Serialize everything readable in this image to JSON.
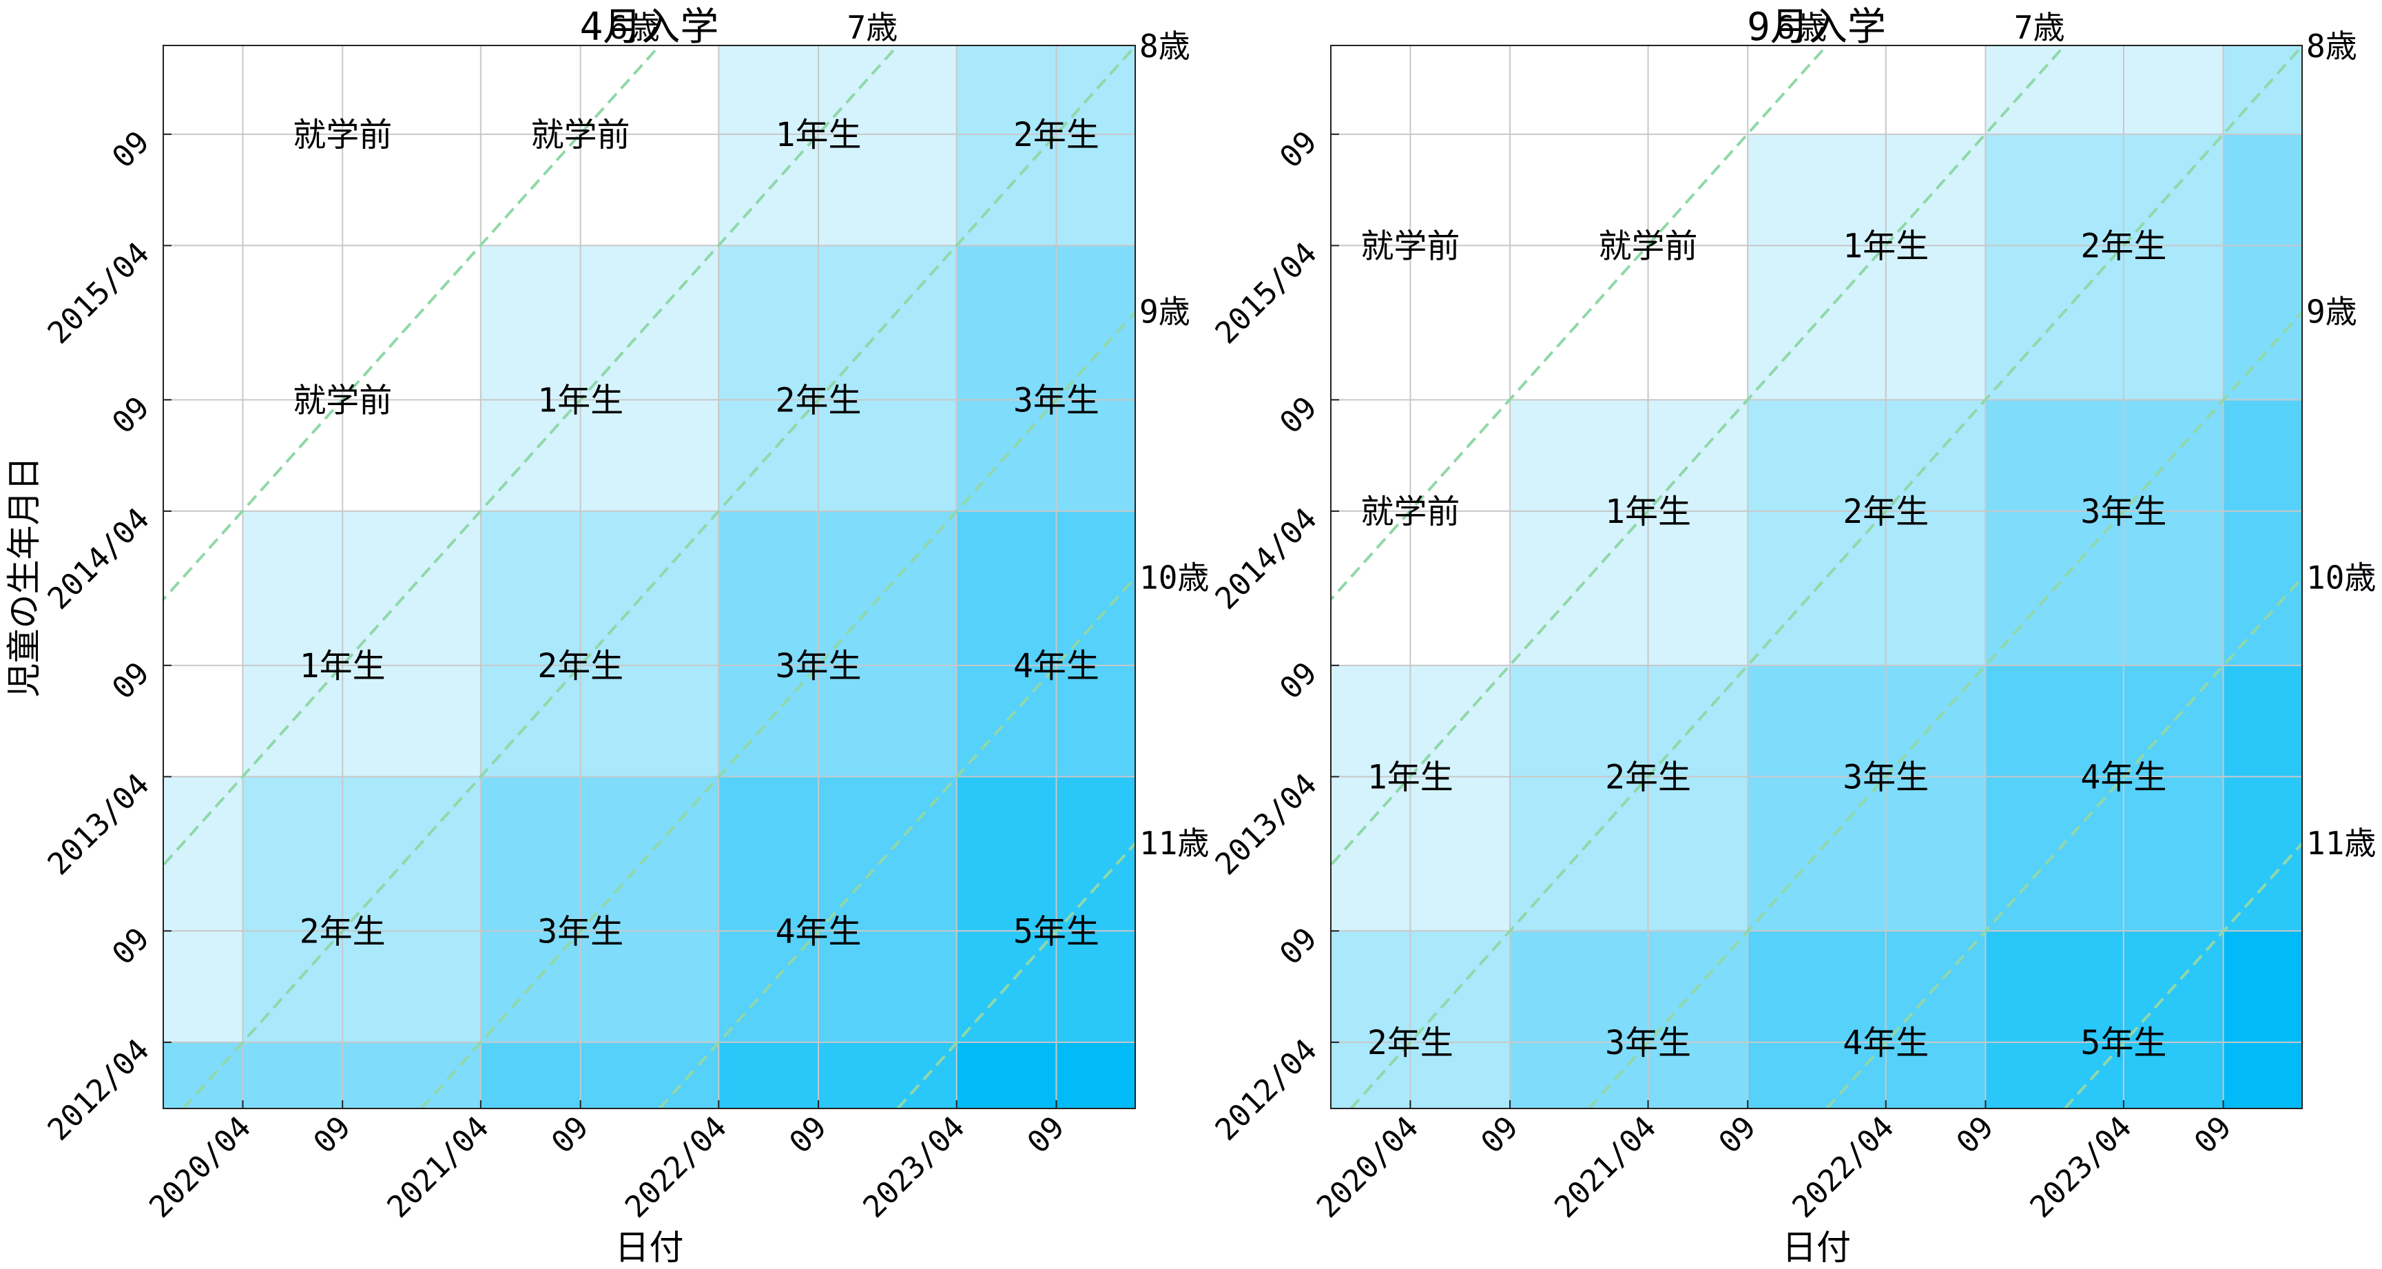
{
  "chart_data": [
    {
      "type": "heatmap",
      "title": "4月入学",
      "xlabel": "日付",
      "ylabel": "児童の生年月日",
      "x_range": [
        "2019-12-01",
        "2023-12-31"
      ],
      "y_range": [
        "2012-01-01",
        "2016-01-01"
      ],
      "x_ticks": [
        {
          "date": "2020-04-01",
          "label": "2020/04"
        },
        {
          "date": "2020-09-01",
          "label": "09"
        },
        {
          "date": "2021-04-01",
          "label": "2021/04"
        },
        {
          "date": "2021-09-01",
          "label": "09"
        },
        {
          "date": "2022-04-01",
          "label": "2022/04"
        },
        {
          "date": "2022-09-01",
          "label": "09"
        },
        {
          "date": "2023-04-01",
          "label": "2023/04"
        },
        {
          "date": "2023-09-01",
          "label": "09"
        }
      ],
      "y_ticks": [
        {
          "date": "2012-04-01",
          "label": "2012/04"
        },
        {
          "date": "2012-09-01",
          "label": "09"
        },
        {
          "date": "2013-04-01",
          "label": "2013/04"
        },
        {
          "date": "2013-09-01",
          "label": "09"
        },
        {
          "date": "2014-04-01",
          "label": "2014/04"
        },
        {
          "date": "2014-09-01",
          "label": "09"
        },
        {
          "date": "2015-04-01",
          "label": "2015/04"
        },
        {
          "date": "2015-09-01",
          "label": "09"
        }
      ],
      "grid": true,
      "grade_colors": [
        "#ffffff",
        "#d4f3fd",
        "#aae8fc",
        "#7fdcfb",
        "#55d1fa",
        "#2ac7f9",
        "#00bbf7"
      ],
      "cells": [
        {
          "x0": "2019-12-01",
          "x1": "2020-04-01",
          "y0": "2012-01-01",
          "y1": "2012-04-01",
          "grade": 3
        },
        {
          "x0": "2019-12-01",
          "x1": "2020-04-01",
          "y0": "2012-04-01",
          "y1": "2013-04-01",
          "grade": 1
        },
        {
          "x0": "2019-12-01",
          "x1": "2020-04-01",
          "y0": "2013-04-01",
          "y1": "2016-01-01",
          "grade": 0
        },
        {
          "x0": "2020-04-01",
          "x1": "2021-04-01",
          "y0": "2012-01-01",
          "y1": "2012-04-01",
          "grade": 3
        },
        {
          "x0": "2020-04-01",
          "x1": "2021-04-01",
          "y0": "2012-04-01",
          "y1": "2013-04-01",
          "grade": 2
        },
        {
          "x0": "2020-04-01",
          "x1": "2021-04-01",
          "y0": "2013-04-01",
          "y1": "2014-04-01",
          "grade": 1
        },
        {
          "x0": "2020-04-01",
          "x1": "2021-04-01",
          "y0": "2014-04-01",
          "y1": "2016-01-01",
          "grade": 0
        },
        {
          "x0": "2021-04-01",
          "x1": "2022-04-01",
          "y0": "2012-01-01",
          "y1": "2012-04-01",
          "grade": 4
        },
        {
          "x0": "2021-04-01",
          "x1": "2022-04-01",
          "y0": "2012-04-01",
          "y1": "2013-04-01",
          "grade": 3
        },
        {
          "x0": "2021-04-01",
          "x1": "2022-04-01",
          "y0": "2013-04-01",
          "y1": "2014-04-01",
          "grade": 2
        },
        {
          "x0": "2021-04-01",
          "x1": "2022-04-01",
          "y0": "2014-04-01",
          "y1": "2015-04-01",
          "grade": 1
        },
        {
          "x0": "2021-04-01",
          "x1": "2022-04-01",
          "y0": "2015-04-01",
          "y1": "2016-01-01",
          "grade": 0
        },
        {
          "x0": "2022-04-01",
          "x1": "2023-04-01",
          "y0": "2012-01-01",
          "y1": "2012-04-01",
          "grade": 5
        },
        {
          "x0": "2022-04-01",
          "x1": "2023-04-01",
          "y0": "2012-04-01",
          "y1": "2013-04-01",
          "grade": 4
        },
        {
          "x0": "2022-04-01",
          "x1": "2023-04-01",
          "y0": "2013-04-01",
          "y1": "2014-04-01",
          "grade": 3
        },
        {
          "x0": "2022-04-01",
          "x1": "2023-04-01",
          "y0": "2014-04-01",
          "y1": "2015-04-01",
          "grade": 2
        },
        {
          "x0": "2022-04-01",
          "x1": "2023-04-01",
          "y0": "2015-04-01",
          "y1": "2016-01-01",
          "grade": 1
        },
        {
          "x0": "2023-04-01",
          "x1": "2023-12-31",
          "y0": "2012-01-01",
          "y1": "2012-04-01",
          "grade": 6
        },
        {
          "x0": "2023-04-01",
          "x1": "2023-12-31",
          "y0": "2012-04-01",
          "y1": "2013-04-01",
          "grade": 5
        },
        {
          "x0": "2023-04-01",
          "x1": "2023-12-31",
          "y0": "2013-04-01",
          "y1": "2014-04-01",
          "grade": 4
        },
        {
          "x0": "2023-04-01",
          "x1": "2023-12-31",
          "y0": "2014-04-01",
          "y1": "2015-04-01",
          "grade": 3
        },
        {
          "x0": "2023-04-01",
          "x1": "2023-12-31",
          "y0": "2015-04-01",
          "y1": "2016-01-01",
          "grade": 2
        }
      ],
      "cell_labels": [
        {
          "x": "2020-09-01",
          "y": "2015-09-01",
          "text": "就学前"
        },
        {
          "x": "2021-09-01",
          "y": "2015-09-01",
          "text": "就学前"
        },
        {
          "x": "2022-09-01",
          "y": "2015-09-01",
          "text": "1年生"
        },
        {
          "x": "2023-09-01",
          "y": "2015-09-01",
          "text": "2年生"
        },
        {
          "x": "2020-09-01",
          "y": "2014-09-01",
          "text": "就学前"
        },
        {
          "x": "2021-09-01",
          "y": "2014-09-01",
          "text": "1年生"
        },
        {
          "x": "2022-09-01",
          "y": "2014-09-01",
          "text": "2年生"
        },
        {
          "x": "2023-09-01",
          "y": "2014-09-01",
          "text": "3年生"
        },
        {
          "x": "2020-09-01",
          "y": "2013-09-01",
          "text": "1年生"
        },
        {
          "x": "2021-09-01",
          "y": "2013-09-01",
          "text": "2年生"
        },
        {
          "x": "2022-09-01",
          "y": "2013-09-01",
          "text": "3年生"
        },
        {
          "x": "2023-09-01",
          "y": "2013-09-01",
          "text": "4年生"
        },
        {
          "x": "2020-09-01",
          "y": "2012-09-01",
          "text": "2年生"
        },
        {
          "x": "2021-09-01",
          "y": "2012-09-01",
          "text": "3年生"
        },
        {
          "x": "2022-09-01",
          "y": "2012-09-01",
          "text": "4年生"
        },
        {
          "x": "2023-09-01",
          "y": "2012-09-01",
          "text": "5年生"
        }
      ],
      "age_lines": [
        {
          "age": 6,
          "label": "6歳"
        },
        {
          "age": 7,
          "label": "7歳"
        },
        {
          "age": 8,
          "label": "8歳"
        },
        {
          "age": 9,
          "label": "9歳"
        },
        {
          "age": 10,
          "label": "10歳"
        },
        {
          "age": 11,
          "label": "11歳"
        }
      ],
      "age_line_color": "#90d8a8"
    },
    {
      "type": "heatmap",
      "title": "9月入学",
      "xlabel": "日付",
      "ylabel": "",
      "x_range": [
        "2019-12-01",
        "2023-12-31"
      ],
      "y_range": [
        "2012-01-01",
        "2016-01-01"
      ],
      "x_ticks": [
        {
          "date": "2020-04-01",
          "label": "2020/04"
        },
        {
          "date": "2020-09-01",
          "label": "09"
        },
        {
          "date": "2021-04-01",
          "label": "2021/04"
        },
        {
          "date": "2021-09-01",
          "label": "09"
        },
        {
          "date": "2022-04-01",
          "label": "2022/04"
        },
        {
          "date": "2022-09-01",
          "label": "09"
        },
        {
          "date": "2023-04-01",
          "label": "2023/04"
        },
        {
          "date": "2023-09-01",
          "label": "09"
        }
      ],
      "y_ticks": [
        {
          "date": "2012-04-01",
          "label": "2012/04"
        },
        {
          "date": "2012-09-01",
          "label": "09"
        },
        {
          "date": "2013-04-01",
          "label": "2013/04"
        },
        {
          "date": "2013-09-01",
          "label": "09"
        },
        {
          "date": "2014-04-01",
          "label": "2014/04"
        },
        {
          "date": "2014-09-01",
          "label": "09"
        },
        {
          "date": "2015-04-01",
          "label": "2015/04"
        },
        {
          "date": "2015-09-01",
          "label": "09"
        }
      ],
      "grid": true,
      "grade_colors": [
        "#ffffff",
        "#d4f3fd",
        "#aae8fc",
        "#7fdcfb",
        "#55d1fa",
        "#2ac7f9",
        "#00bbf7"
      ],
      "cells": [
        {
          "x0": "2019-12-01",
          "x1": "2020-09-01",
          "y0": "2012-01-01",
          "y1": "2012-09-01",
          "grade": 2
        },
        {
          "x0": "2019-12-01",
          "x1": "2020-09-01",
          "y0": "2012-09-01",
          "y1": "2013-09-01",
          "grade": 1
        },
        {
          "x0": "2019-12-01",
          "x1": "2020-09-01",
          "y0": "2013-09-01",
          "y1": "2016-01-01",
          "grade": 0
        },
        {
          "x0": "2020-09-01",
          "x1": "2021-09-01",
          "y0": "2012-01-01",
          "y1": "2012-09-01",
          "grade": 3
        },
        {
          "x0": "2020-09-01",
          "x1": "2021-09-01",
          "y0": "2012-09-01",
          "y1": "2013-09-01",
          "grade": 2
        },
        {
          "x0": "2020-09-01",
          "x1": "2021-09-01",
          "y0": "2013-09-01",
          "y1": "2014-09-01",
          "grade": 1
        },
        {
          "x0": "2020-09-01",
          "x1": "2021-09-01",
          "y0": "2014-09-01",
          "y1": "2016-01-01",
          "grade": 0
        },
        {
          "x0": "2021-09-01",
          "x1": "2022-09-01",
          "y0": "2012-01-01",
          "y1": "2012-09-01",
          "grade": 4
        },
        {
          "x0": "2021-09-01",
          "x1": "2022-09-01",
          "y0": "2012-09-01",
          "y1": "2013-09-01",
          "grade": 3
        },
        {
          "x0": "2021-09-01",
          "x1": "2022-09-01",
          "y0": "2013-09-01",
          "y1": "2014-09-01",
          "grade": 2
        },
        {
          "x0": "2021-09-01",
          "x1": "2022-09-01",
          "y0": "2014-09-01",
          "y1": "2015-09-01",
          "grade": 1
        },
        {
          "x0": "2021-09-01",
          "x1": "2022-09-01",
          "y0": "2015-09-01",
          "y1": "2016-01-01",
          "grade": 0
        },
        {
          "x0": "2022-09-01",
          "x1": "2023-09-01",
          "y0": "2012-01-01",
          "y1": "2012-09-01",
          "grade": 5
        },
        {
          "x0": "2022-09-01",
          "x1": "2023-09-01",
          "y0": "2012-09-01",
          "y1": "2013-09-01",
          "grade": 4
        },
        {
          "x0": "2022-09-01",
          "x1": "2023-09-01",
          "y0": "2013-09-01",
          "y1": "2014-09-01",
          "grade": 3
        },
        {
          "x0": "2022-09-01",
          "x1": "2023-09-01",
          "y0": "2014-09-01",
          "y1": "2015-09-01",
          "grade": 2
        },
        {
          "x0": "2022-09-01",
          "x1": "2023-09-01",
          "y0": "2015-09-01",
          "y1": "2016-01-01",
          "grade": 1
        },
        {
          "x0": "2023-09-01",
          "x1": "2023-12-31",
          "y0": "2012-01-01",
          "y1": "2012-09-01",
          "grade": 6
        },
        {
          "x0": "2023-09-01",
          "x1": "2023-12-31",
          "y0": "2012-09-01",
          "y1": "2013-09-01",
          "grade": 5
        },
        {
          "x0": "2023-09-01",
          "x1": "2023-12-31",
          "y0": "2013-09-01",
          "y1": "2014-09-01",
          "grade": 4
        },
        {
          "x0": "2023-09-01",
          "x1": "2023-12-31",
          "y0": "2014-09-01",
          "y1": "2015-09-01",
          "grade": 3
        },
        {
          "x0": "2023-09-01",
          "x1": "2023-12-31",
          "y0": "2015-09-01",
          "y1": "2016-01-01",
          "grade": 2
        }
      ],
      "cell_labels": [
        {
          "x": "2020-04-01",
          "y": "2015-04-01",
          "text": "就学前"
        },
        {
          "x": "2021-04-01",
          "y": "2015-04-01",
          "text": "就学前"
        },
        {
          "x": "2022-04-01",
          "y": "2015-04-01",
          "text": "1年生"
        },
        {
          "x": "2023-04-01",
          "y": "2015-04-01",
          "text": "2年生"
        },
        {
          "x": "2020-04-01",
          "y": "2014-04-01",
          "text": "就学前"
        },
        {
          "x": "2021-04-01",
          "y": "2014-04-01",
          "text": "1年生"
        },
        {
          "x": "2022-04-01",
          "y": "2014-04-01",
          "text": "2年生"
        },
        {
          "x": "2023-04-01",
          "y": "2014-04-01",
          "text": "3年生"
        },
        {
          "x": "2020-04-01",
          "y": "2013-04-01",
          "text": "1年生"
        },
        {
          "x": "2021-04-01",
          "y": "2013-04-01",
          "text": "2年生"
        },
        {
          "x": "2022-04-01",
          "y": "2013-04-01",
          "text": "3年生"
        },
        {
          "x": "2023-04-01",
          "y": "2013-04-01",
          "text": "4年生"
        },
        {
          "x": "2020-04-01",
          "y": "2012-04-01",
          "text": "2年生"
        },
        {
          "x": "2021-04-01",
          "y": "2012-04-01",
          "text": "3年生"
        },
        {
          "x": "2022-04-01",
          "y": "2012-04-01",
          "text": "4年生"
        },
        {
          "x": "2023-04-01",
          "y": "2012-04-01",
          "text": "5年生"
        }
      ],
      "age_lines": [
        {
          "age": 6,
          "label": "6歳"
        },
        {
          "age": 7,
          "label": "7歳"
        },
        {
          "age": 8,
          "label": "8歳"
        },
        {
          "age": 9,
          "label": "9歳"
        },
        {
          "age": 10,
          "label": "10歳"
        },
        {
          "age": 11,
          "label": "11歳"
        }
      ],
      "age_line_color": "#90d8a8"
    }
  ]
}
